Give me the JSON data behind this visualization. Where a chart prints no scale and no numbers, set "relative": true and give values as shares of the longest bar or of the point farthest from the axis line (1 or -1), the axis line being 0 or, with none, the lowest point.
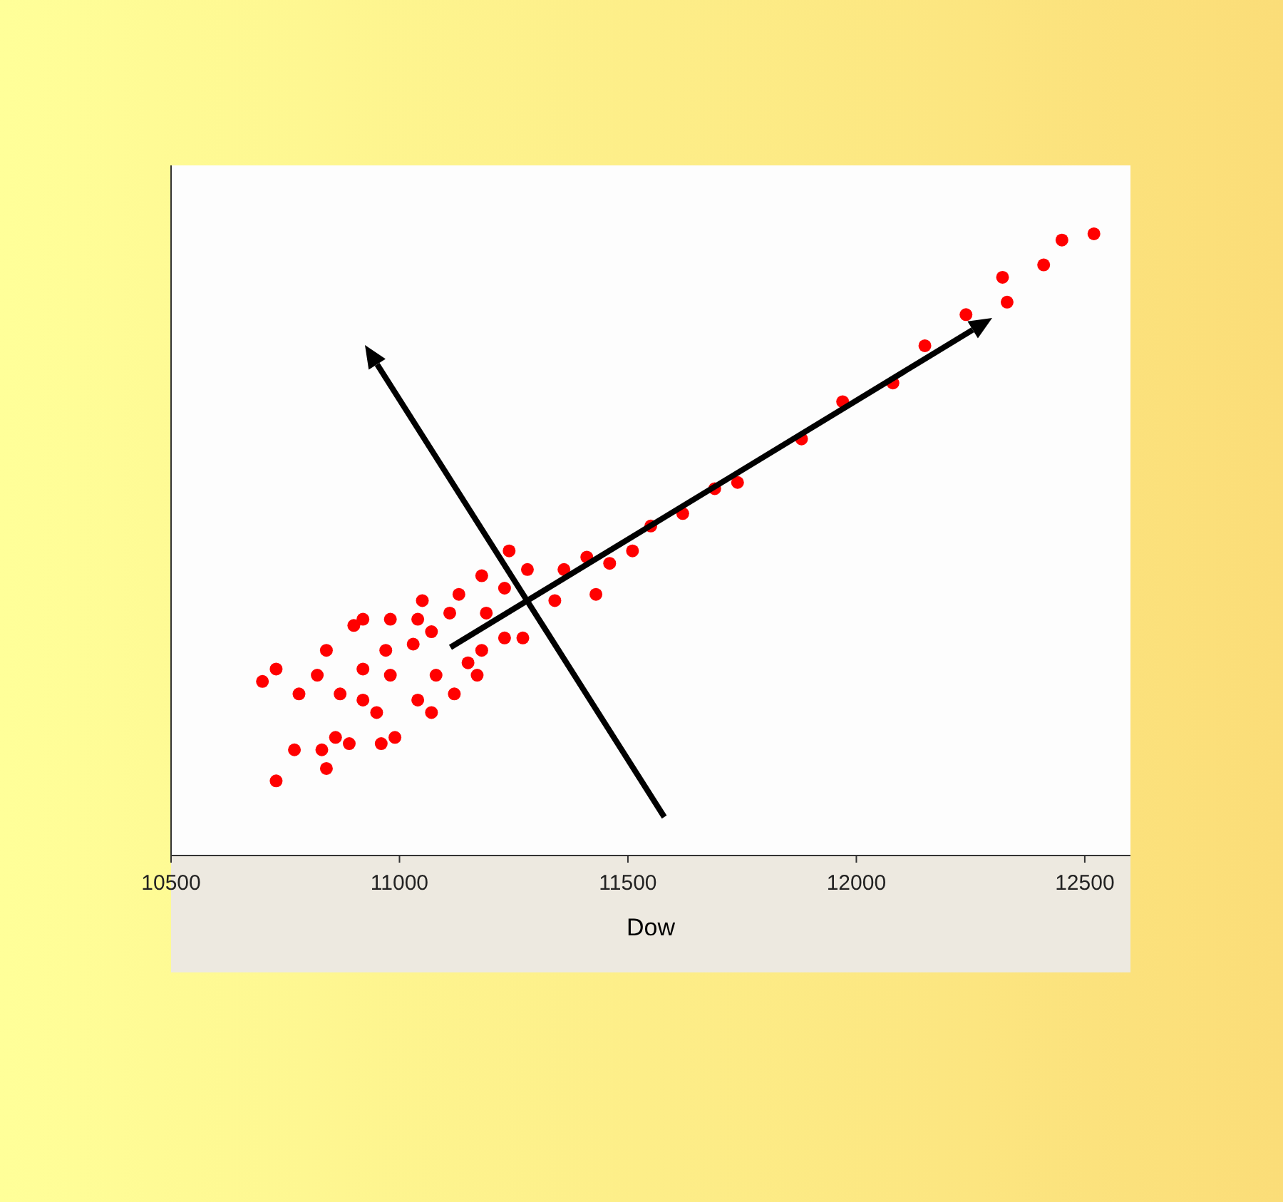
{
  "chart_data": {
    "type": "scatter",
    "xlabel": "Dow",
    "xlim": [
      10500,
      12600
    ],
    "xticks": [
      10500,
      11000,
      11500,
      12000,
      12500
    ],
    "tick_labels": "x",
    "relative": true,
    "marker": "circle",
    "series": [
      {
        "color": "#ff0000",
        "x": [
          10730,
          10770,
          10700,
          10730,
          10830,
          10840,
          10860,
          10890,
          10780,
          10820,
          10870,
          10840,
          10920,
          10950,
          10960,
          10990,
          10920,
          10900,
          10920,
          10970,
          10980,
          11040,
          11070,
          10980,
          11030,
          11080,
          11120,
          11040,
          11050,
          11070,
          11150,
          11170,
          11110,
          11180,
          11130,
          11190,
          11230,
          11180,
          11270,
          11230,
          11240,
          11280,
          11340,
          11360,
          11430,
          11410,
          11460,
          11510,
          11550,
          11620,
          11690,
          11740,
          11880,
          11970,
          12080,
          12150,
          12240,
          12330,
          12320,
          12410,
          12450,
          12520
        ],
        "values": [
          0.12,
          0.17,
          0.28,
          0.3,
          0.17,
          0.14,
          0.19,
          0.18,
          0.26,
          0.29,
          0.26,
          0.33,
          0.25,
          0.23,
          0.18,
          0.19,
          0.3,
          0.37,
          0.38,
          0.33,
          0.29,
          0.25,
          0.23,
          0.38,
          0.34,
          0.29,
          0.26,
          0.38,
          0.41,
          0.36,
          0.31,
          0.29,
          0.39,
          0.33,
          0.42,
          0.39,
          0.35,
          0.45,
          0.35,
          0.43,
          0.49,
          0.46,
          0.41,
          0.46,
          0.42,
          0.48,
          0.47,
          0.49,
          0.53,
          0.55,
          0.59,
          0.6,
          0.67,
          0.73,
          0.76,
          0.82,
          0.87,
          0.89,
          0.93,
          0.95,
          0.99,
          1.0
        ]
      }
    ]
  }
}
